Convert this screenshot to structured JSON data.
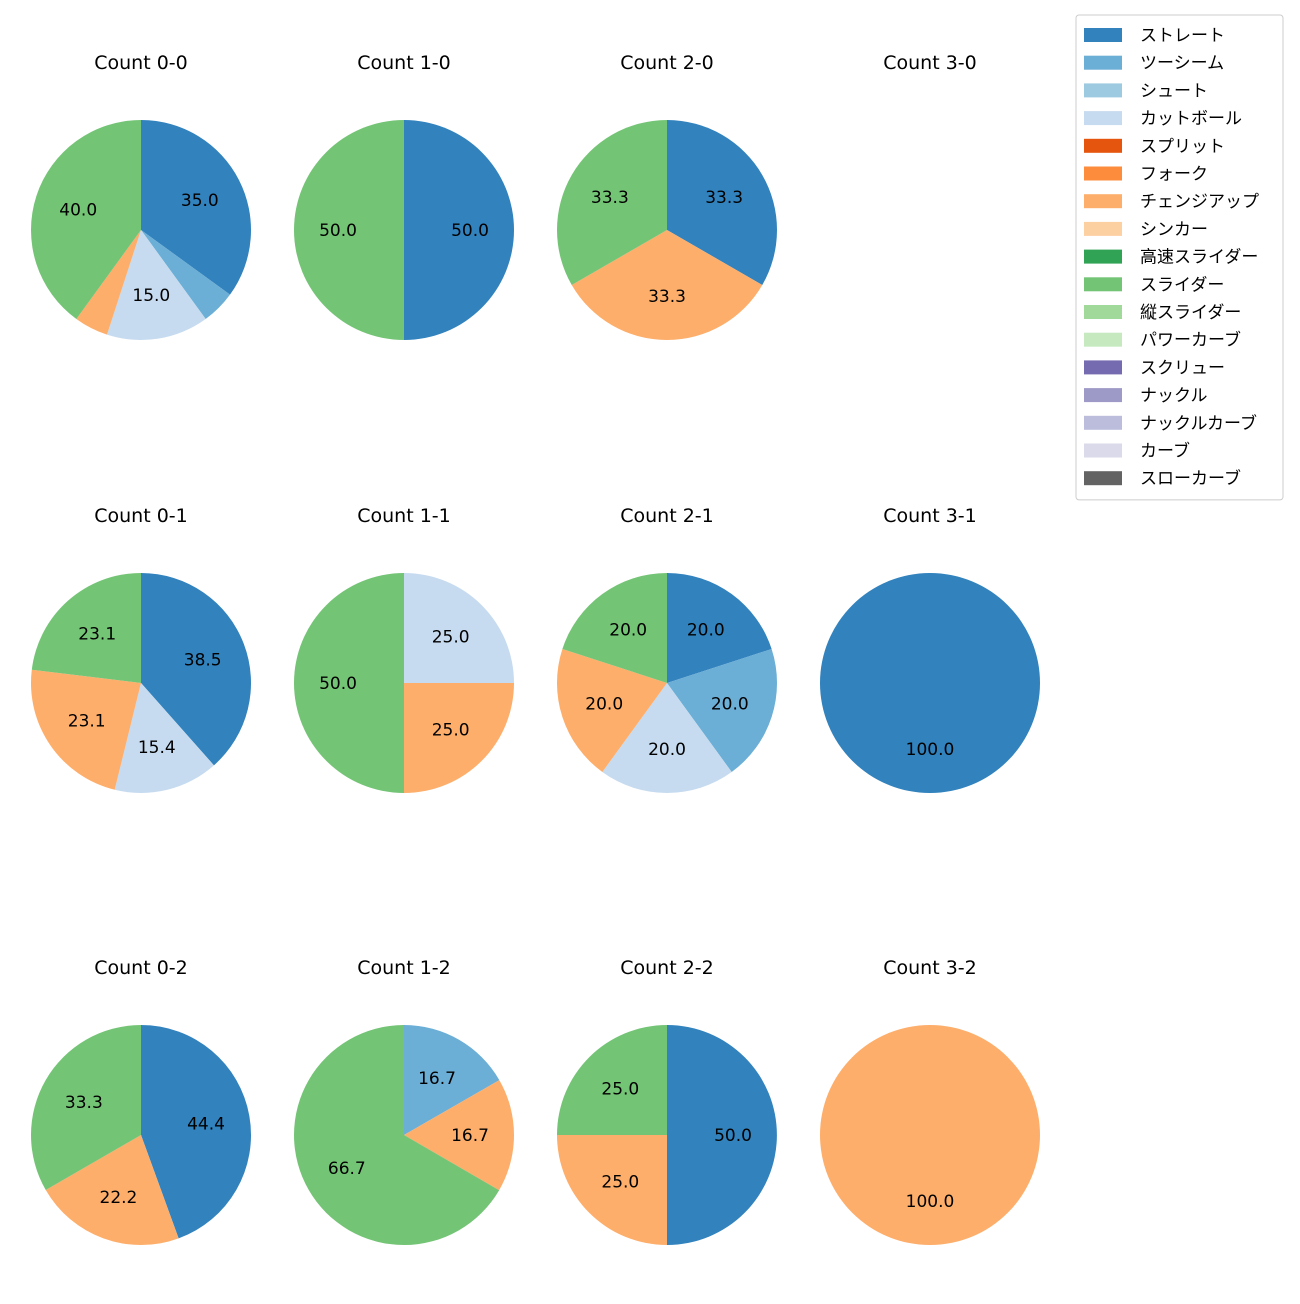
{
  "chart_data": {
    "type": "pie",
    "legend": {
      "placement": "top-right",
      "entries": [
        {
          "name": "ストレート",
          "color": "#3182bd"
        },
        {
          "name": "ツーシーム",
          "color": "#6baed6"
        },
        {
          "name": "シュート",
          "color": "#9ecae1"
        },
        {
          "name": "カットボール",
          "color": "#c6dbef"
        },
        {
          "name": "スプリット",
          "color": "#e6550d"
        },
        {
          "name": "フォーク",
          "color": "#fd8d3c"
        },
        {
          "name": "チェンジアップ",
          "color": "#fdae6b"
        },
        {
          "name": "シンカー",
          "color": "#fdd0a2"
        },
        {
          "name": "高速スライダー",
          "color": "#31a354"
        },
        {
          "name": "スライダー",
          "color": "#74c476"
        },
        {
          "name": "縦スライダー",
          "color": "#a1d99b"
        },
        {
          "name": "パワーカーブ",
          "color": "#c7e9c0"
        },
        {
          "name": "スクリュー",
          "color": "#756bb1"
        },
        {
          "name": "ナックル",
          "color": "#9e9ac8"
        },
        {
          "name": "ナックルカーブ",
          "color": "#bcbddc"
        },
        {
          "name": "カーブ",
          "color": "#dadaeb"
        },
        {
          "name": "スローカーブ",
          "color": "#636363"
        }
      ]
    },
    "pies": [
      {
        "title": "Count 0-0",
        "slices": [
          {
            "name": "ストレート",
            "value": 35.0
          },
          {
            "name": "ツーシーム",
            "value": 5.0
          },
          {
            "name": "カットボール",
            "value": 15.0
          },
          {
            "name": "チェンジアップ",
            "value": 5.0
          },
          {
            "name": "スライダー",
            "value": 40.0
          }
        ]
      },
      {
        "title": "Count 1-0",
        "slices": [
          {
            "name": "ストレート",
            "value": 50.0
          },
          {
            "name": "スライダー",
            "value": 50.0
          }
        ]
      },
      {
        "title": "Count 2-0",
        "slices": [
          {
            "name": "ストレート",
            "value": 33.3
          },
          {
            "name": "チェンジアップ",
            "value": 33.3
          },
          {
            "name": "スライダー",
            "value": 33.3
          }
        ]
      },
      {
        "title": "Count 3-0",
        "slices": []
      },
      {
        "title": "Count 0-1",
        "slices": [
          {
            "name": "ストレート",
            "value": 38.5
          },
          {
            "name": "カットボール",
            "value": 15.4
          },
          {
            "name": "チェンジアップ",
            "value": 23.1
          },
          {
            "name": "スライダー",
            "value": 23.1
          }
        ]
      },
      {
        "title": "Count 1-1",
        "slices": [
          {
            "name": "カットボール",
            "value": 25.0
          },
          {
            "name": "チェンジアップ",
            "value": 25.0
          },
          {
            "name": "スライダー",
            "value": 50.0
          }
        ]
      },
      {
        "title": "Count 2-1",
        "slices": [
          {
            "name": "ストレート",
            "value": 20.0
          },
          {
            "name": "ツーシーム",
            "value": 20.0
          },
          {
            "name": "カットボール",
            "value": 20.0
          },
          {
            "name": "チェンジアップ",
            "value": 20.0
          },
          {
            "name": "スライダー",
            "value": 20.0
          }
        ]
      },
      {
        "title": "Count 3-1",
        "slices": [
          {
            "name": "ストレート",
            "value": 100.0
          }
        ]
      },
      {
        "title": "Count 0-2",
        "slices": [
          {
            "name": "ストレート",
            "value": 44.4
          },
          {
            "name": "チェンジアップ",
            "value": 22.2
          },
          {
            "name": "スライダー",
            "value": 33.3
          }
        ]
      },
      {
        "title": "Count 1-2",
        "slices": [
          {
            "name": "ツーシーム",
            "value": 16.7
          },
          {
            "name": "チェンジアップ",
            "value": 16.7
          },
          {
            "name": "スライダー",
            "value": 66.7
          }
        ]
      },
      {
        "title": "Count 2-2",
        "slices": [
          {
            "name": "ストレート",
            "value": 50.0
          },
          {
            "name": "チェンジアップ",
            "value": 25.0
          },
          {
            "name": "スライダー",
            "value": 25.0
          }
        ]
      },
      {
        "title": "Count 3-2",
        "slices": [
          {
            "name": "チェンジアップ",
            "value": 100.0
          }
        ]
      }
    ]
  }
}
